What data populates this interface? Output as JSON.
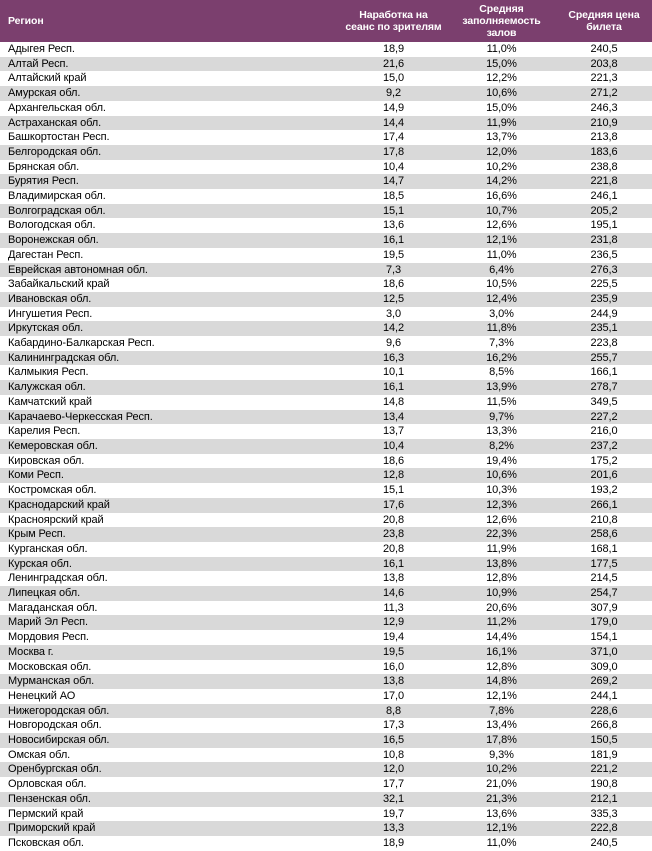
{
  "colors": {
    "header_bg": "#7B3F6E",
    "alt_row": "#D9D9D9",
    "bottom_border": "#1F3864",
    "header_text": "#FFFFFF",
    "body_text": "#000000"
  },
  "chart_data": {
    "type": "table",
    "title": "",
    "columns": [
      "Регион",
      "Наработка на сеанс по зрителям",
      "Средняя заполняемость залов",
      "Средняя цена билета"
    ],
    "rows": [
      [
        "Адыгея Респ.",
        "18,9",
        "11,0%",
        "240,5"
      ],
      [
        "Алтай Респ.",
        "21,6",
        "15,0%",
        "203,8"
      ],
      [
        "Алтайский край",
        "15,0",
        "12,2%",
        "221,3"
      ],
      [
        "Амурская обл.",
        "9,2",
        "10,6%",
        "271,2"
      ],
      [
        "Архангельская обл.",
        "14,9",
        "15,0%",
        "246,3"
      ],
      [
        "Астраханская обл.",
        "14,4",
        "11,9%",
        "210,9"
      ],
      [
        "Башкортостан Респ.",
        "17,4",
        "13,7%",
        "213,8"
      ],
      [
        "Белгородская обл.",
        "17,8",
        "12,0%",
        "183,6"
      ],
      [
        "Брянская обл.",
        "10,4",
        "10,2%",
        "238,8"
      ],
      [
        "Бурятия Респ.",
        "14,7",
        "14,2%",
        "221,8"
      ],
      [
        "Владимирская обл.",
        "18,5",
        "16,6%",
        "246,1"
      ],
      [
        "Волгоградская обл.",
        "15,1",
        "10,7%",
        "205,2"
      ],
      [
        "Вологодская обл.",
        "13,6",
        "12,6%",
        "195,1"
      ],
      [
        "Воронежская обл.",
        "16,1",
        "12,1%",
        "231,8"
      ],
      [
        "Дагестан Респ.",
        "19,5",
        "11,0%",
        "236,5"
      ],
      [
        "Еврейская автономная обл.",
        "7,3",
        "6,4%",
        "276,3"
      ],
      [
        "Забайкальский край",
        "18,6",
        "10,5%",
        "225,5"
      ],
      [
        "Ивановская обл.",
        "12,5",
        "12,4%",
        "235,9"
      ],
      [
        "Ингушетия Респ.",
        "3,0",
        "3,0%",
        "244,9"
      ],
      [
        "Иркутская обл.",
        "14,2",
        "11,8%",
        "235,1"
      ],
      [
        "Кабардино-Балкарская Респ.",
        "9,6",
        "7,3%",
        "223,8"
      ],
      [
        "Калининградская обл.",
        "16,3",
        "16,2%",
        "255,7"
      ],
      [
        "Калмыкия Респ.",
        "10,1",
        "8,5%",
        "166,1"
      ],
      [
        "Калужская обл.",
        "16,1",
        "13,9%",
        "278,7"
      ],
      [
        "Камчатский край",
        "14,8",
        "11,5%",
        "349,5"
      ],
      [
        "Карачаево-Черкесская Респ.",
        "13,4",
        "9,7%",
        "227,2"
      ],
      [
        "Карелия Респ.",
        "13,7",
        "13,3%",
        "216,0"
      ],
      [
        "Кемеровская обл.",
        "10,4",
        "8,2%",
        "237,2"
      ],
      [
        "Кировская обл.",
        "18,6",
        "19,4%",
        "175,2"
      ],
      [
        "Коми Респ.",
        "12,8",
        "10,6%",
        "201,6"
      ],
      [
        "Костромская обл.",
        "15,1",
        "10,3%",
        "193,2"
      ],
      [
        "Краснодарский край",
        "17,6",
        "12,3%",
        "266,1"
      ],
      [
        "Красноярский край",
        "20,8",
        "12,6%",
        "210,8"
      ],
      [
        "Крым Респ.",
        "23,8",
        "22,3%",
        "258,6"
      ],
      [
        "Курганская обл.",
        "20,8",
        "11,9%",
        "168,1"
      ],
      [
        "Курская обл.",
        "16,1",
        "13,8%",
        "177,5"
      ],
      [
        "Ленинградская обл.",
        "13,8",
        "12,8%",
        "214,5"
      ],
      [
        "Липецкая обл.",
        "14,6",
        "10,9%",
        "254,7"
      ],
      [
        "Магаданская обл.",
        "11,3",
        "20,6%",
        "307,9"
      ],
      [
        "Марий Эл Респ.",
        "12,9",
        "11,2%",
        "179,0"
      ],
      [
        "Мордовия Респ.",
        "19,4",
        "14,4%",
        "154,1"
      ],
      [
        "Москва г.",
        "19,5",
        "16,1%",
        "371,0"
      ],
      [
        "Московская обл.",
        "16,0",
        "12,8%",
        "309,0"
      ],
      [
        "Мурманская обл.",
        "13,8",
        "14,8%",
        "269,2"
      ],
      [
        "Ненецкий АО",
        "17,0",
        "12,1%",
        "244,1"
      ],
      [
        "Нижегородская обл.",
        "8,8",
        "7,8%",
        "228,6"
      ],
      [
        "Новгородская обл.",
        "17,3",
        "13,4%",
        "266,8"
      ],
      [
        "Новосибирская обл.",
        "16,5",
        "17,8%",
        "150,5"
      ],
      [
        "Омская обл.",
        "10,8",
        "9,3%",
        "181,9"
      ],
      [
        "Оренбургская обл.",
        "12,0",
        "10,2%",
        "221,2"
      ],
      [
        "Орловская обл.",
        "17,7",
        "21,0%",
        "190,8"
      ],
      [
        "Пензенская обл.",
        "32,1",
        "21,3%",
        "212,1"
      ],
      [
        "Пермский край",
        "19,7",
        "13,6%",
        "335,3"
      ],
      [
        "Приморский край",
        "13,3",
        "12,1%",
        "222,8"
      ],
      [
        "Псковская обл.",
        "18,9",
        "11,0%",
        "240,5"
      ]
    ]
  }
}
